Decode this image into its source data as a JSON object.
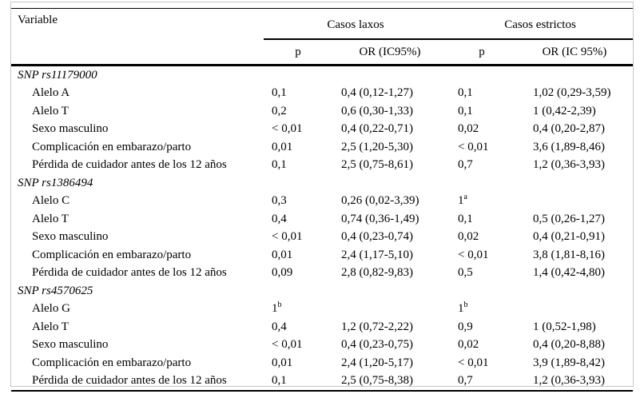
{
  "colors": {
    "text": "#000000",
    "rule": "#000000",
    "frame_border": "#c6c6c6",
    "background": "#ffffff"
  },
  "table": {
    "header": {
      "variable": "Variable",
      "group1": "Casos laxos",
      "group2": "Casos estrictos",
      "sub": [
        "p",
        "OR (IC95%)",
        "p",
        "OR (IC 95%)"
      ]
    },
    "rows": [
      {
        "type": "section",
        "label": "SNP rs11179000",
        "cells": [
          "",
          "",
          "",
          ""
        ]
      },
      {
        "type": "data",
        "label": "Alelo A",
        "cells": [
          "0,1",
          "0,4 (0,12-1,27)",
          "0,1",
          "1,02 (0,29-3,59)"
        ]
      },
      {
        "type": "data",
        "label": "Alelo T",
        "cells": [
          "0,2",
          "0,6 (0,30-1,33)",
          "0,1",
          "1 (0,42-2,39)"
        ]
      },
      {
        "type": "data",
        "label": "Sexo masculino",
        "cells": [
          "< 0,01",
          "0,4 (0,22-0,71)",
          "0,02",
          "0,4 (0,20-2,87)"
        ]
      },
      {
        "type": "data",
        "label": "Complicación en embarazo/parto",
        "cells": [
          "0,01",
          "2,5 (1,20-5,30)",
          "< 0,01",
          "3,6 (1,89-8,46)"
        ]
      },
      {
        "type": "data",
        "label": "Pérdida de cuidador antes de los 12 años",
        "cells": [
          "0,1",
          "2,5 (0,75-8,61)",
          "0,7",
          "1,2 (0,36-3,93)"
        ]
      },
      {
        "type": "section",
        "label": "SNP rs1386494",
        "cells": [
          "",
          "",
          "",
          ""
        ]
      },
      {
        "type": "data",
        "label": "Alelo C",
        "cells": [
          "0,3",
          "0,26 (0,02-3,39)",
          "1^a",
          ""
        ]
      },
      {
        "type": "data",
        "label": "Alelo T",
        "cells": [
          "0,4",
          "0,74 (0,36-1,49)",
          "0,1",
          "0,5 (0,26-1,27)"
        ]
      },
      {
        "type": "data",
        "label": "Sexo masculino",
        "cells": [
          "< 0,01",
          "0,4 (0,23-0,74)",
          "0,02",
          "0,4 (0,21-0,91)"
        ]
      },
      {
        "type": "data",
        "label": "Complicación en embarazo/parto",
        "cells": [
          "0,01",
          "2,4 (1,17-5,10)",
          "< 0,01",
          "3,8 (1,81-8,16)"
        ]
      },
      {
        "type": "data",
        "label": "Pérdida de cuidador antes de los 12 años",
        "cells": [
          "0,09",
          "2,8 (0,82-9,83)",
          "0,5",
          "1,4 (0,42-4,80)"
        ]
      },
      {
        "type": "section",
        "label": "SNP rs4570625",
        "cells": [
          "",
          "",
          "",
          ""
        ]
      },
      {
        "type": "data",
        "label": "Alelo G",
        "cells": [
          "1^b",
          "",
          "1^b",
          ""
        ]
      },
      {
        "type": "data",
        "label": "Alelo T",
        "cells": [
          "0,4",
          "1,2 (0,72-2,22)",
          "0,9",
          "1 (0,52-1,98)"
        ]
      },
      {
        "type": "data",
        "label": "Sexo masculino",
        "cells": [
          "< 0,01",
          "0,4 (0,23-0,75)",
          "0,02",
          "0,4 (0,20-8,88)"
        ]
      },
      {
        "type": "data",
        "label": "Complicación en embarazo/parto",
        "cells": [
          "0,01",
          "2,4 (1,20-5,17)",
          "< 0,01",
          "3,9 (1,89-8,42)"
        ]
      },
      {
        "type": "data",
        "label": "Pérdida de cuidador antes de los 12 años",
        "cells": [
          "0,1",
          "2,5 (0,75-8,38)",
          "0,7",
          "1,2 (0,36-3,93)"
        ]
      }
    ]
  }
}
